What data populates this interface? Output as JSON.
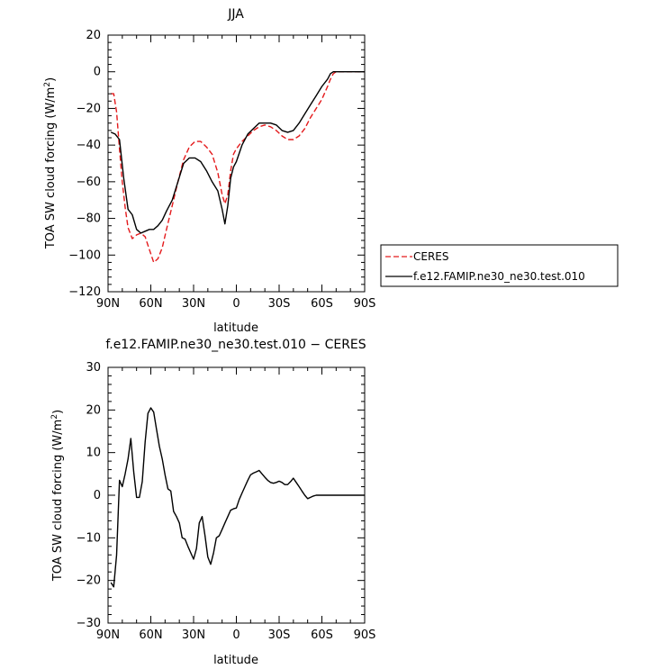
{
  "chart_data": [
    {
      "type": "line",
      "title": "JJA",
      "xlabel": "latitude",
      "ylabel": "TOA SW cloud forcing (W/m",
      "ylabel_sup": "2",
      "ylabel_end": ")",
      "xlim": [
        90,
        -90
      ],
      "ylim": [
        -120,
        20
      ],
      "xticks": [
        90,
        60,
        30,
        0,
        -30,
        -60,
        -90
      ],
      "xtick_labels": [
        "90N",
        "60N",
        "30N",
        "0",
        "30S",
        "60S",
        "90S"
      ],
      "yticks": [
        -120,
        -100,
        -80,
        -60,
        -40,
        -20,
        0,
        20
      ],
      "ytick_labels": [
        "−120",
        "−100",
        "−80",
        "−60",
        "−40",
        "−20",
        "0",
        "20"
      ],
      "legend_position": "right",
      "series": [
        {
          "name": "CERES",
          "color": "#e41a1c",
          "dash": "dashed",
          "x": [
            88,
            86,
            84,
            82,
            80,
            78,
            76,
            73,
            70,
            67,
            64,
            61,
            58,
            55,
            52,
            49,
            45,
            41,
            37,
            33,
            29,
            25,
            21,
            17,
            13,
            10,
            8,
            6,
            4,
            2,
            0,
            -4,
            -8,
            -12,
            -16,
            -20,
            -24,
            -28,
            -32,
            -36,
            -40,
            -44,
            -48,
            -52,
            -56,
            -60,
            -64,
            -66,
            -68,
            -70,
            -72,
            -74,
            -76,
            -80,
            -85,
            -90
          ],
          "y": [
            -12,
            -12,
            -22,
            -42,
            -60,
            -74,
            -85,
            -91,
            -89,
            -88,
            -90,
            -97,
            -104,
            -102,
            -96,
            -86,
            -73,
            -60,
            -48,
            -41,
            -38,
            -38,
            -41,
            -45,
            -55,
            -67,
            -72,
            -67,
            -54,
            -45,
            -42,
            -38,
            -35,
            -32,
            -30,
            -29,
            -30,
            -32,
            -35,
            -37,
            -37,
            -35,
            -31,
            -25,
            -20,
            -15,
            -8,
            -4,
            -1,
            0,
            0,
            0,
            0,
            0,
            0,
            0
          ]
        },
        {
          "name": "f.e12.FAMIP.ne30_ne30.test.010",
          "color": "#000000",
          "dash": "solid",
          "x": [
            88,
            85,
            82,
            79,
            76,
            73,
            70,
            67,
            64,
            61,
            58,
            55,
            52,
            49,
            45,
            41,
            37,
            33,
            29,
            25,
            21,
            17,
            13,
            10,
            8,
            6,
            4,
            2,
            0,
            -4,
            -8,
            -12,
            -16,
            -20,
            -24,
            -28,
            -32,
            -36,
            -40,
            -44,
            -48,
            -52,
            -56,
            -60,
            -64,
            -66,
            -68,
            -70,
            -72,
            -74,
            -76,
            -80,
            -85,
            -90
          ],
          "y": [
            -33,
            -34,
            -37,
            -58,
            -75,
            -78,
            -86,
            -88,
            -87,
            -86,
            -86,
            -84,
            -81,
            -76,
            -70,
            -60,
            -50,
            -47,
            -47,
            -49,
            -54,
            -60,
            -65,
            -75,
            -83,
            -73,
            -58,
            -52,
            -49,
            -40,
            -34,
            -31,
            -28,
            -28,
            -28,
            -29,
            -32,
            -33,
            -32,
            -28,
            -23,
            -18,
            -13,
            -8,
            -4,
            -1,
            0,
            0,
            0,
            0,
            0,
            0,
            0,
            0
          ]
        }
      ]
    },
    {
      "type": "line",
      "title": "f.e12.FAMIP.ne30_ne30.test.010 − CERES",
      "xlabel": "latitude",
      "ylabel": "TOA SW cloud forcing (W/m",
      "ylabel_sup": "2",
      "ylabel_end": ")",
      "xlim": [
        90,
        -90
      ],
      "ylim": [
        -30,
        30
      ],
      "xticks": [
        90,
        60,
        30,
        0,
        -30,
        -60,
        -90
      ],
      "xtick_labels": [
        "90N",
        "60N",
        "30N",
        "0",
        "30S",
        "60S",
        "90S"
      ],
      "yticks": [
        -30,
        -20,
        -10,
        0,
        10,
        20,
        30
      ],
      "ytick_labels": [
        "−30",
        "−20",
        "−10",
        "0",
        "10",
        "20",
        "30"
      ],
      "series": [
        {
          "color": "#000000",
          "dash": "solid",
          "x": [
            88,
            86,
            84,
            82,
            80,
            78,
            76,
            74,
            72,
            70,
            68,
            66,
            64,
            62,
            60,
            58,
            56,
            54,
            52,
            50,
            48,
            46,
            44,
            42,
            40,
            38,
            36,
            34,
            32,
            30,
            28,
            26,
            24,
            22,
            20,
            18,
            16,
            14,
            12,
            10,
            8,
            6,
            4,
            2,
            0,
            -2,
            -4,
            -6,
            -8,
            -10,
            -12,
            -14,
            -16,
            -18,
            -20,
            -22,
            -24,
            -26,
            -28,
            -30,
            -32,
            -34,
            -36,
            -38,
            -40,
            -42,
            -44,
            -46,
            -48,
            -50,
            -52,
            -54,
            -56,
            -58,
            -60,
            -62,
            -64,
            -66,
            -68,
            -70,
            -72,
            -74,
            -76,
            -78,
            -80,
            -85,
            -90
          ],
          "y": [
            -20.5,
            -21.5,
            -14,
            3.5,
            2,
            5,
            8.5,
            13.3,
            5.5,
            -0.5,
            -0.5,
            3.2,
            12.5,
            19.2,
            20.5,
            19.5,
            15.5,
            11.5,
            8.5,
            4.8,
            1.5,
            1,
            -3.8,
            -5,
            -6.5,
            -10,
            -10.3,
            -12,
            -13.5,
            -15,
            -12.5,
            -6.5,
            -5,
            -9.5,
            -14.5,
            -16.2,
            -13.5,
            -10,
            -9.5,
            -8,
            -6.5,
            -5,
            -3.5,
            -3.2,
            -3,
            -1,
            0.5,
            2,
            3.5,
            4.8,
            5.2,
            5.5,
            5.8,
            5,
            4.2,
            3.5,
            3,
            2.8,
            3,
            3.3,
            3,
            2.5,
            2.5,
            3.2,
            4,
            3,
            2,
            1,
            0,
            -0.8,
            -0.5,
            -0.2,
            0,
            0,
            0,
            0,
            0,
            0,
            0,
            0,
            0,
            0,
            0,
            0,
            0,
            0,
            0
          ]
        }
      ]
    }
  ]
}
